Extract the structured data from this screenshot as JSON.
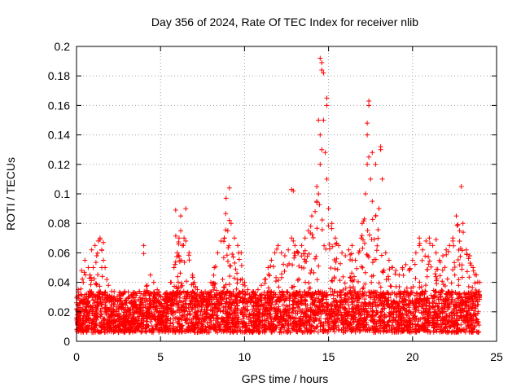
{
  "chart_data": {
    "type": "scatter",
    "title": "Day 356 of 2024, Rate Of TEC Index for receiver nlib",
    "xlabel": "GPS time / hours",
    "ylabel": "ROTI / TECUs",
    "xlim": [
      0,
      25
    ],
    "ylim": [
      0,
      0.2
    ],
    "xticks": [
      0,
      5,
      10,
      15,
      20,
      25
    ],
    "yticks": [
      0,
      0.02,
      0.04,
      0.06,
      0.08,
      0.1,
      0.12,
      0.14,
      0.16,
      0.18,
      0.2
    ],
    "xtick_labels": [
      "0",
      "5",
      "10",
      "15",
      "20",
      "25"
    ],
    "ytick_labels": [
      "0",
      "0.02",
      "0.04",
      "0.06",
      "0.08",
      "0.1",
      "0.12",
      "0.14",
      "0.16",
      "0.18",
      "0.2"
    ],
    "grid": true,
    "marker": "+",
    "color": "#ff0000",
    "series": [
      {
        "name": "ROTI",
        "x": [
          0.0,
          0.1,
          0.2,
          0.3,
          0.4,
          0.5,
          0.6,
          0.7,
          0.8,
          0.9,
          1.0,
          1.1,
          1.2,
          1.3,
          1.4,
          1.5,
          1.6,
          1.7,
          1.8,
          1.9,
          2.0,
          2.2,
          2.4,
          2.6,
          2.8,
          3.0,
          3.2,
          3.4,
          3.6,
          3.8,
          4.0,
          4.2,
          4.4,
          4.6,
          4.8,
          5.0,
          5.2,
          5.4,
          5.6,
          5.8,
          6.0,
          6.1,
          6.2,
          6.3,
          6.4,
          6.5,
          6.7,
          6.9,
          7.0,
          7.2,
          7.4,
          7.6,
          7.8,
          8.0,
          8.2,
          8.4,
          8.6,
          8.8,
          9.0,
          9.1,
          9.2,
          9.4,
          9.6,
          9.8,
          10.0,
          10.2,
          10.4,
          10.6,
          10.8,
          11.0,
          11.2,
          11.4,
          11.6,
          11.8,
          12.0,
          12.2,
          12.4,
          12.6,
          12.8,
          12.9,
          13.0,
          13.2,
          13.4,
          13.6,
          13.8,
          14.0,
          14.2,
          14.3,
          14.4,
          14.5,
          14.6,
          14.7,
          14.8,
          14.9,
          15.0,
          15.2,
          15.4,
          15.6,
          15.8,
          16.0,
          16.2,
          16.4,
          16.6,
          16.8,
          17.0,
          17.2,
          17.3,
          17.4,
          17.5,
          17.6,
          17.8,
          18.0,
          18.1,
          18.2,
          18.4,
          18.6,
          18.8,
          19.0,
          19.2,
          19.4,
          19.6,
          19.8,
          20.0,
          20.2,
          20.4,
          20.6,
          20.8,
          21.0,
          21.2,
          21.4,
          21.6,
          21.8,
          22.0,
          22.2,
          22.4,
          22.6,
          22.8,
          23.0,
          23.2,
          23.4,
          23.6,
          23.8,
          24.0,
          14.5,
          14.6,
          14.6,
          14.7,
          14.9,
          14.9,
          14.4,
          17.4,
          17.4,
          17.3,
          17.3,
          18.1,
          17.6,
          17.8,
          12.9,
          12.8,
          14.3,
          14.5,
          9.1,
          8.9,
          22.9,
          6.5,
          6.2,
          5.9,
          1.4,
          1.6,
          4.0,
          20.4,
          21.4,
          22.4
        ],
        "y": [
          0.022,
          0.035,
          0.028,
          0.048,
          0.04,
          0.055,
          0.03,
          0.05,
          0.045,
          0.062,
          0.05,
          0.065,
          0.058,
          0.068,
          0.07,
          0.062,
          0.055,
          0.05,
          0.042,
          0.038,
          0.03,
          0.025,
          0.02,
          0.028,
          0.022,
          0.02,
          0.026,
          0.03,
          0.024,
          0.028,
          0.032,
          0.038,
          0.045,
          0.04,
          0.035,
          0.03,
          0.028,
          0.032,
          0.04,
          0.05,
          0.06,
          0.07,
          0.075,
          0.065,
          0.07,
          0.068,
          0.06,
          0.045,
          0.04,
          0.035,
          0.03,
          0.028,
          0.032,
          0.04,
          0.05,
          0.06,
          0.068,
          0.07,
          0.075,
          0.082,
          0.08,
          0.07,
          0.065,
          0.06,
          0.04,
          0.035,
          0.03,
          0.032,
          0.035,
          0.038,
          0.042,
          0.05,
          0.055,
          0.06,
          0.065,
          0.06,
          0.058,
          0.062,
          0.07,
          0.068,
          0.065,
          0.06,
          0.065,
          0.07,
          0.075,
          0.085,
          0.088,
          0.095,
          0.1,
          0.12,
          0.13,
          0.15,
          0.128,
          0.11,
          0.09,
          0.08,
          0.07,
          0.065,
          0.06,
          0.058,
          0.062,
          0.065,
          0.055,
          0.06,
          0.08,
          0.1,
          0.12,
          0.125,
          0.11,
          0.095,
          0.085,
          0.09,
          0.13,
          0.11,
          0.06,
          0.055,
          0.05,
          0.048,
          0.045,
          0.05,
          0.052,
          0.048,
          0.055,
          0.06,
          0.065,
          0.062,
          0.068,
          0.07,
          0.065,
          0.06,
          0.055,
          0.058,
          0.062,
          0.065,
          0.068,
          0.085,
          0.075,
          0.08,
          0.062,
          0.058,
          0.05,
          0.045,
          0.04,
          0.192,
          0.189,
          0.184,
          0.182,
          0.165,
          0.16,
          0.15,
          0.163,
          0.16,
          0.148,
          0.14,
          0.132,
          0.128,
          0.12,
          0.102,
          0.103,
          0.105,
          0.14,
          0.104,
          0.097,
          0.105,
          0.09,
          0.085,
          0.089,
          0.069,
          0.067,
          0.065,
          0.07,
          0.069,
          0.07
        ]
      }
    ]
  }
}
